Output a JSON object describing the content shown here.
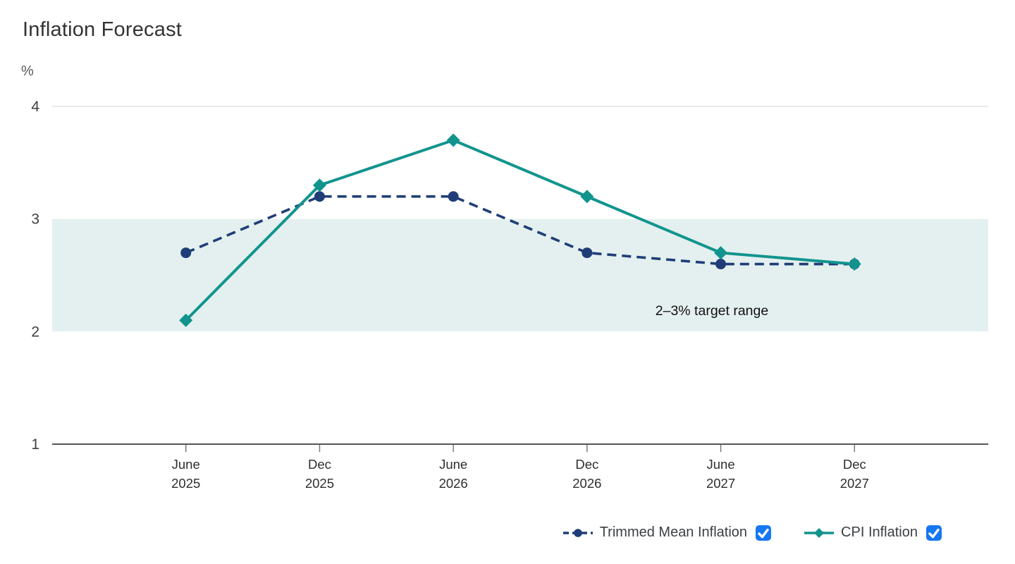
{
  "title": "Inflation Forecast",
  "y_axis": {
    "unit": "%",
    "tick_labels": [
      "4",
      "3",
      "2",
      "1"
    ],
    "max": 4,
    "min": 1
  },
  "x_axis": {
    "tick_labels": [
      [
        "June",
        "2025"
      ],
      [
        "Dec",
        "2025"
      ],
      [
        "June",
        "2026"
      ],
      [
        "Dec",
        "2026"
      ],
      [
        "June",
        "2027"
      ],
      [
        "Dec",
        "2027"
      ]
    ]
  },
  "annotation": {
    "text": "2–3% target range"
  },
  "legend": {
    "items": [
      {
        "label": "Trimmed Mean Inflation",
        "checked": true,
        "color": "#1f3e78",
        "marker": "circle",
        "line_style": "dashed"
      },
      {
        "label": "CPI Inflation",
        "checked": true,
        "color": "#11948e",
        "marker": "diamond",
        "line_style": "solid"
      }
    ]
  },
  "colors": {
    "trimmed_mean": "#1f3e78",
    "cpi": "#11948e",
    "target_band": "#e4f0ef",
    "checkbox_blue": "#1677f2",
    "axis": "#55565a",
    "tick": "#7a7a7a",
    "gridline": "#e4e4e4",
    "tick_label": "#3f3f3f",
    "annotation_text": "#111111"
  },
  "chart_data": {
    "type": "line",
    "title": "Inflation Forecast",
    "xlabel": "",
    "ylabel": "%",
    "ylim": [
      1,
      4
    ],
    "yticks": [
      1,
      2,
      3,
      4
    ],
    "grid": "top-gridline-only",
    "legend_position": "bottom-right",
    "categories": [
      "June 2025",
      "Dec 2025",
      "June 2026",
      "Dec 2026",
      "June 2027",
      "Dec 2027"
    ],
    "series": [
      {
        "name": "Trimmed Mean Inflation",
        "values": [
          2.7,
          3.2,
          3.2,
          2.7,
          2.6,
          2.6
        ],
        "color": "#1f3e78",
        "line_style": "dashed",
        "marker": "circle"
      },
      {
        "name": "CPI Inflation",
        "values": [
          2.1,
          3.3,
          3.7,
          3.2,
          2.7,
          2.6
        ],
        "color": "#11948e",
        "line_style": "solid",
        "marker": "diamond"
      }
    ],
    "target_range": {
      "from": 2,
      "to": 3,
      "label": "2–3% target range"
    }
  }
}
